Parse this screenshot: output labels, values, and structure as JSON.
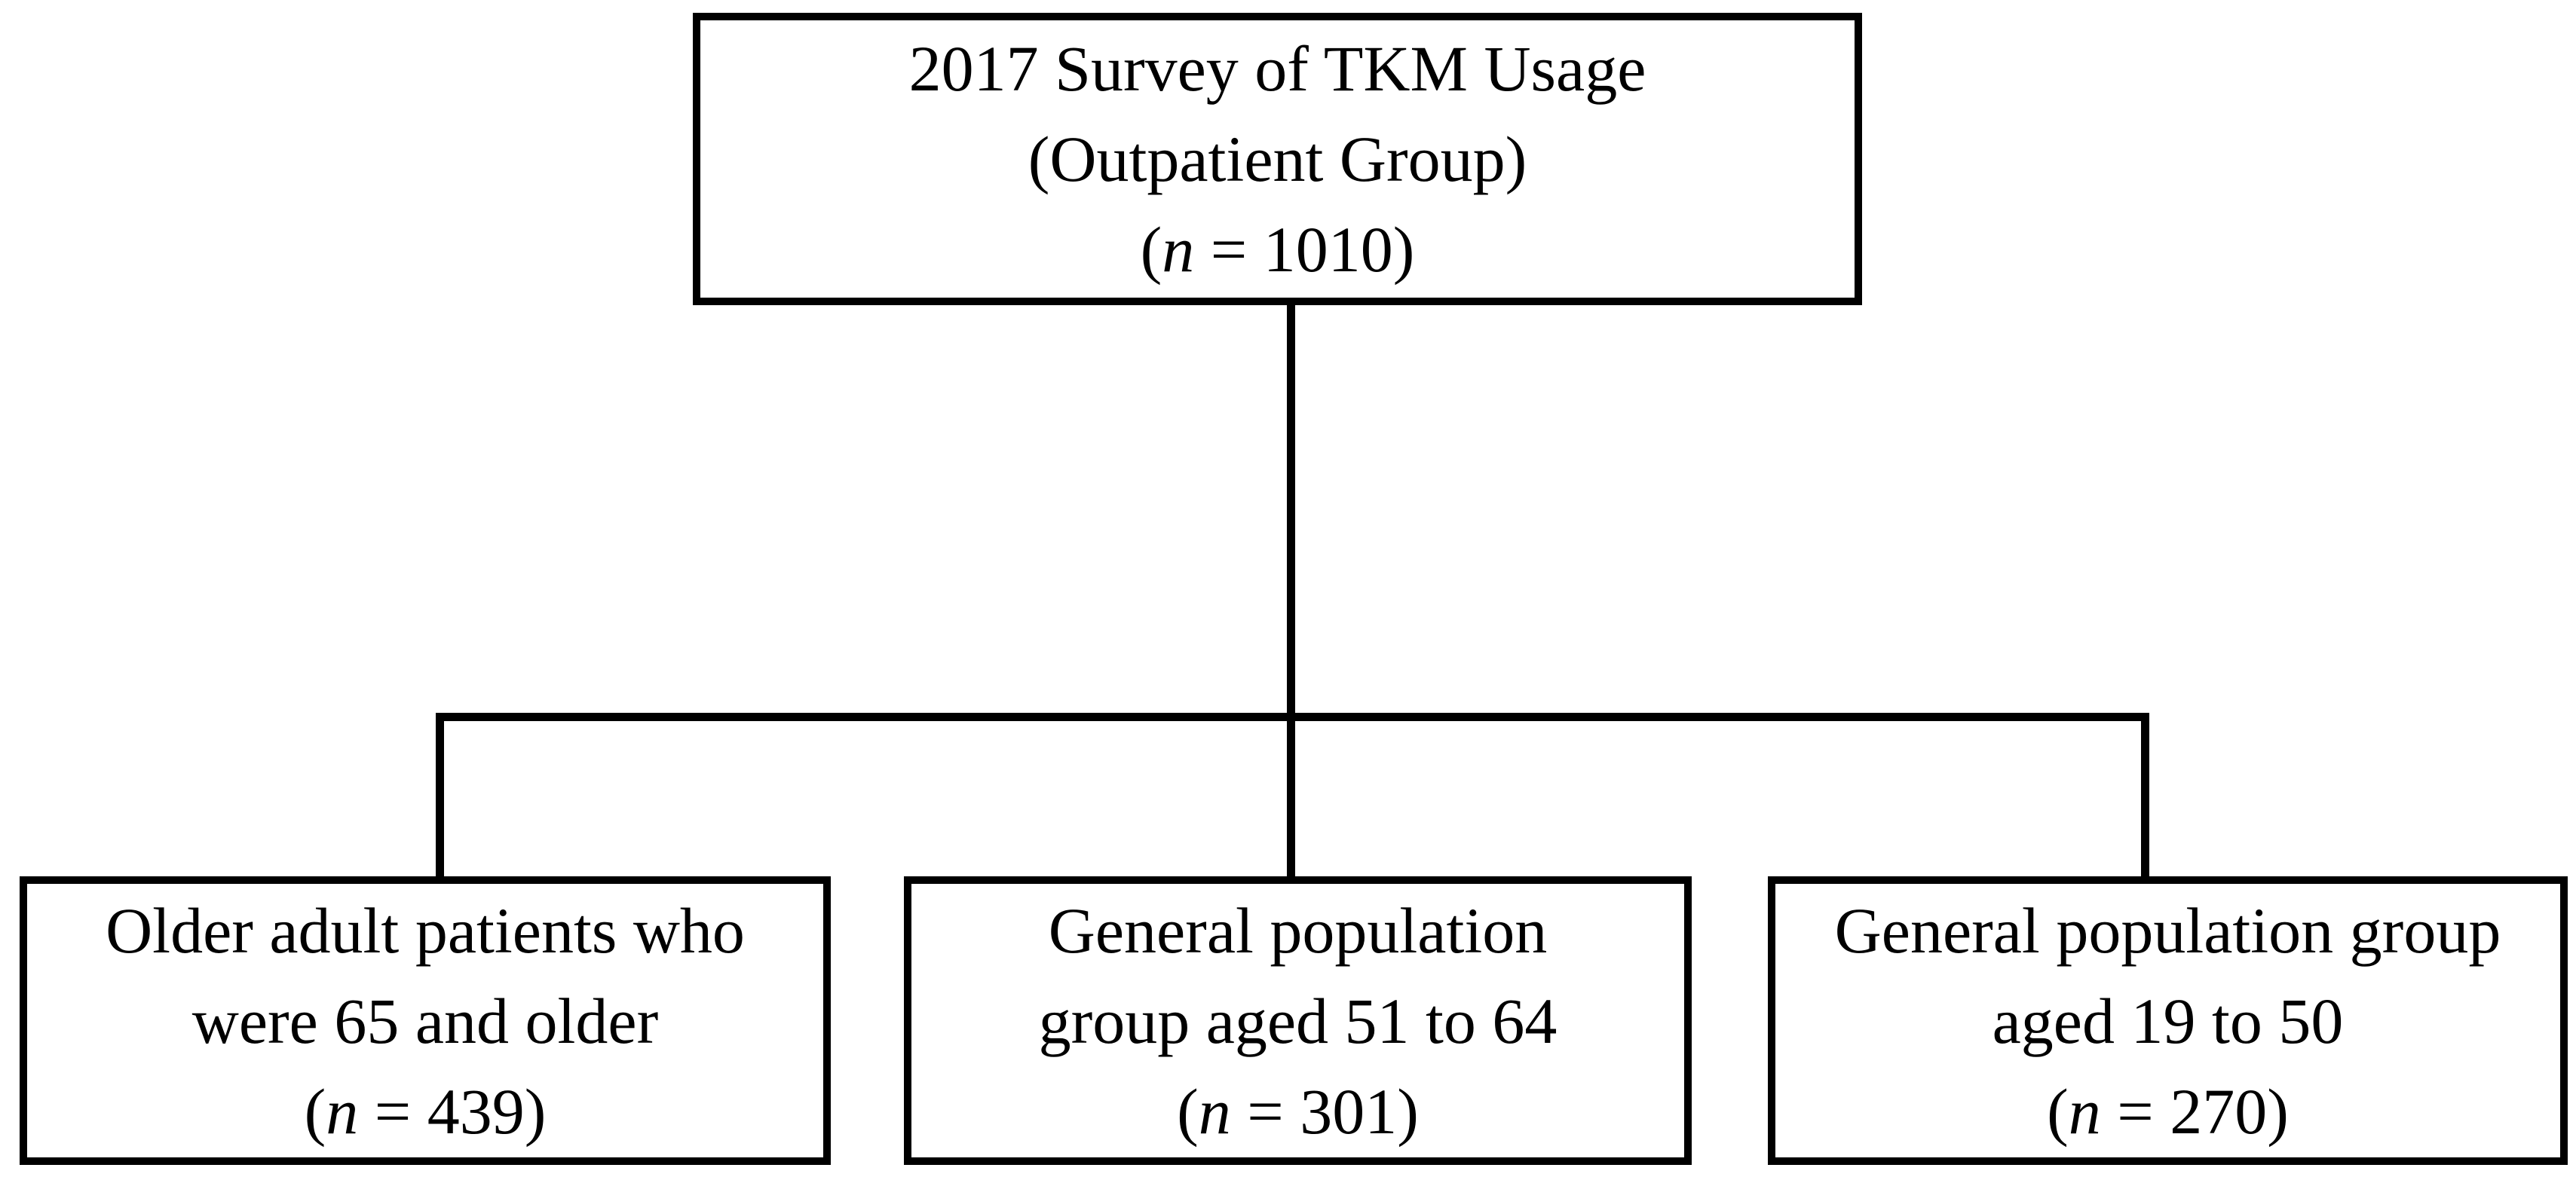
{
  "figure": {
    "background_color": "#ffffff",
    "line_color": "#000000",
    "text_color": "#000000"
  },
  "root_box": {
    "lines": [
      "2017 Survey of TKM Usage",
      "(Outpatient Group)"
    ],
    "sample": {
      "open": "(",
      "symbol": "n",
      "rest": " = 1010)"
    }
  },
  "child_boxes": [
    {
      "lines": [
        "Older adult patients who",
        "were 65 and older"
      ],
      "sample": {
        "open": "(",
        "symbol": "n",
        "rest": " = 439)"
      }
    },
    {
      "lines": [
        "General population",
        "group aged 51 to 64"
      ],
      "sample": {
        "open": "(",
        "symbol": "n",
        "rest": " = 301)"
      }
    },
    {
      "lines": [
        "General population group",
        "aged 19 to 50"
      ],
      "sample": {
        "open": "(",
        "symbol": "n",
        "rest": " = 270)"
      }
    }
  ]
}
